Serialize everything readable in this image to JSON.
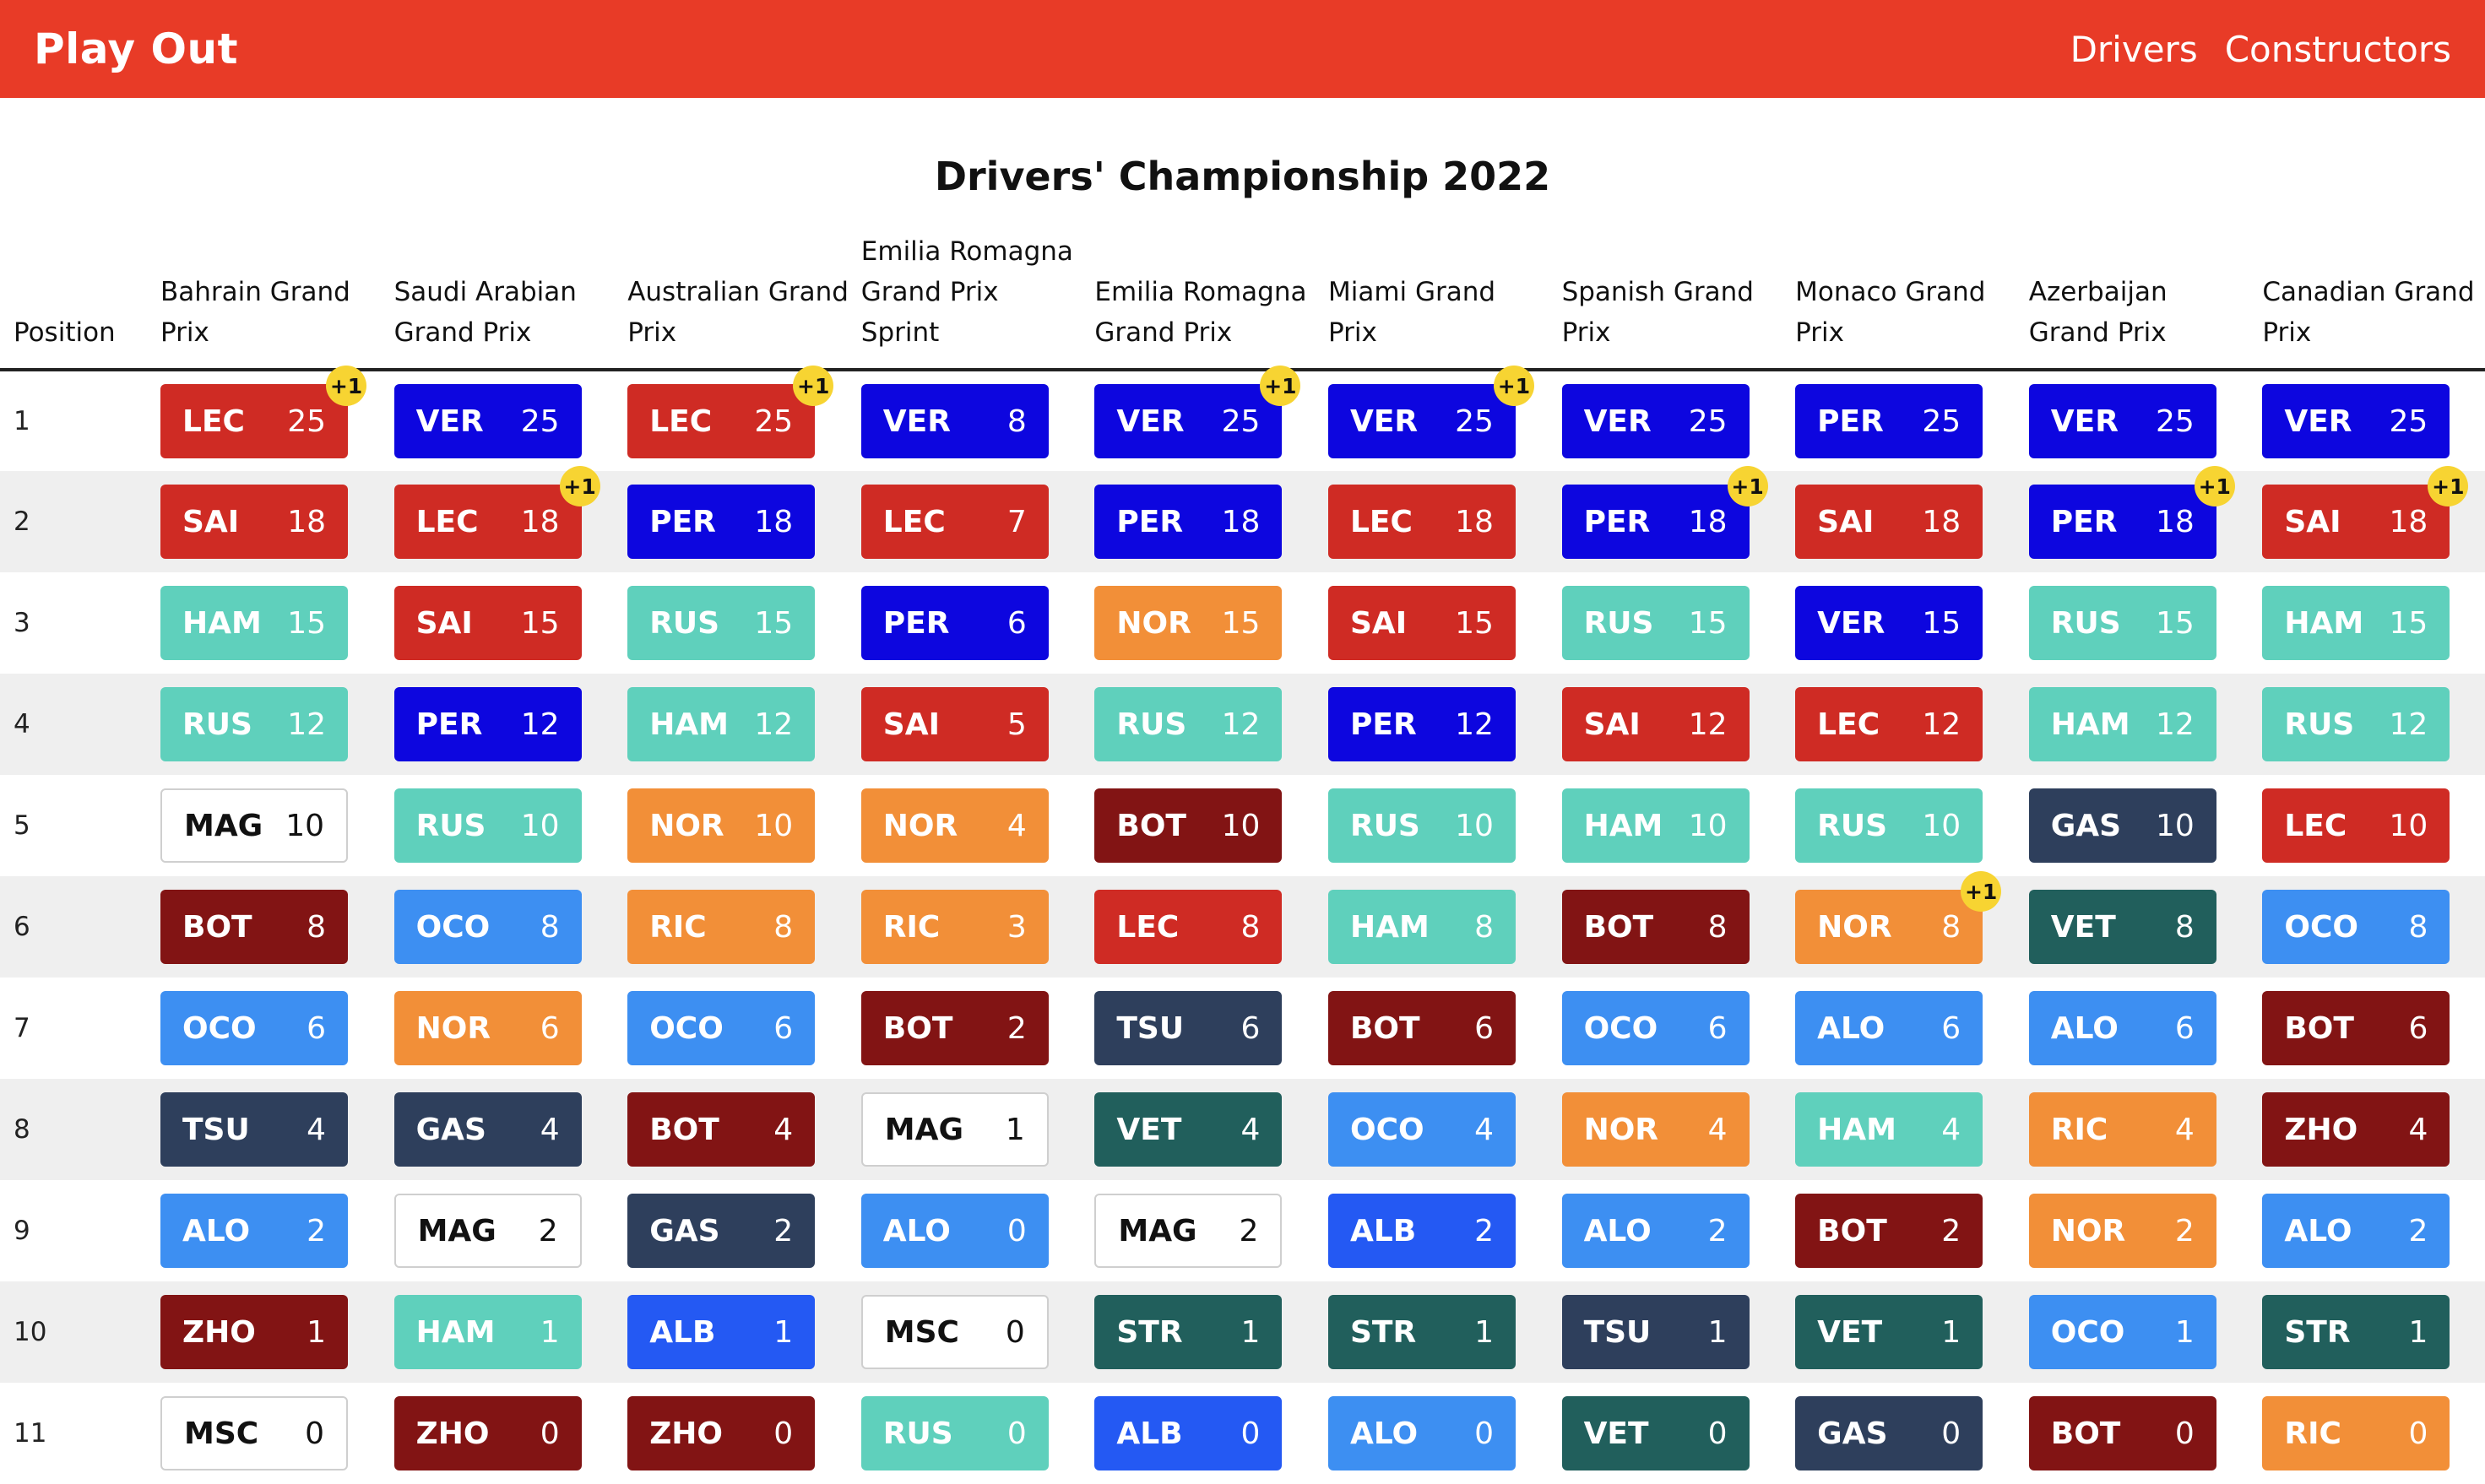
{
  "nav": {
    "brand": "Play Out",
    "links": [
      "Drivers",
      "Constructors"
    ]
  },
  "page_title": "Drivers' Championship 2022",
  "table": {
    "position_header": "Position",
    "races": [
      "Bahrain Grand Prix",
      "Saudi Arabian Grand Prix",
      "Australian Grand Prix",
      "Emilia Romagna Grand Prix Sprint",
      "Emilia Romagna Grand Prix",
      "Miami Grand Prix",
      "Spanish Grand Prix",
      "Monaco Grand Prix",
      "Azerbaijan Grand Prix",
      "Canadian Grand Prix"
    ],
    "bonus_label": "+1",
    "team_colors": {
      "ferrari": "#cf2b24",
      "redbull": "#0d06df",
      "mercedes": "#5fd0bc",
      "haas": "#ffffff",
      "alfa": "#821414",
      "alpine": "#3d8ff2",
      "alphatauri": "#2e3f5c",
      "mclaren": "#f28f38",
      "astonmartin": "#215f5c",
      "williams": "#2459f3"
    },
    "drivers": {
      "LEC": "ferrari",
      "SAI": "ferrari",
      "VER": "redbull",
      "PER": "redbull",
      "HAM": "mercedes",
      "RUS": "mercedes",
      "MAG": "haas",
      "MSC": "haas",
      "BOT": "alfa",
      "ZHO": "alfa",
      "OCO": "alpine",
      "ALO": "alpine",
      "TSU": "alphatauri",
      "GAS": "alphatauri",
      "NOR": "mclaren",
      "RIC": "mclaren",
      "VET": "astonmartin",
      "STR": "astonmartin",
      "ALB": "williams"
    },
    "rows": [
      {
        "position": "1",
        "cells": [
          {
            "d": "LEC",
            "p": "25",
            "b": true
          },
          {
            "d": "VER",
            "p": "25"
          },
          {
            "d": "LEC",
            "p": "25",
            "b": true
          },
          {
            "d": "VER",
            "p": "8"
          },
          {
            "d": "VER",
            "p": "25",
            "b": true
          },
          {
            "d": "VER",
            "p": "25",
            "b": true
          },
          {
            "d": "VER",
            "p": "25"
          },
          {
            "d": "PER",
            "p": "25"
          },
          {
            "d": "VER",
            "p": "25"
          },
          {
            "d": "VER",
            "p": "25"
          }
        ]
      },
      {
        "position": "2",
        "cells": [
          {
            "d": "SAI",
            "p": "18"
          },
          {
            "d": "LEC",
            "p": "18",
            "b": true
          },
          {
            "d": "PER",
            "p": "18"
          },
          {
            "d": "LEC",
            "p": "7"
          },
          {
            "d": "PER",
            "p": "18"
          },
          {
            "d": "LEC",
            "p": "18"
          },
          {
            "d": "PER",
            "p": "18",
            "b": true
          },
          {
            "d": "SAI",
            "p": "18"
          },
          {
            "d": "PER",
            "p": "18",
            "b": true
          },
          {
            "d": "SAI",
            "p": "18",
            "b": true
          }
        ]
      },
      {
        "position": "3",
        "cells": [
          {
            "d": "HAM",
            "p": "15"
          },
          {
            "d": "SAI",
            "p": "15"
          },
          {
            "d": "RUS",
            "p": "15"
          },
          {
            "d": "PER",
            "p": "6"
          },
          {
            "d": "NOR",
            "p": "15"
          },
          {
            "d": "SAI",
            "p": "15"
          },
          {
            "d": "RUS",
            "p": "15"
          },
          {
            "d": "VER",
            "p": "15"
          },
          {
            "d": "RUS",
            "p": "15"
          },
          {
            "d": "HAM",
            "p": "15"
          }
        ]
      },
      {
        "position": "4",
        "cells": [
          {
            "d": "RUS",
            "p": "12"
          },
          {
            "d": "PER",
            "p": "12"
          },
          {
            "d": "HAM",
            "p": "12"
          },
          {
            "d": "SAI",
            "p": "5"
          },
          {
            "d": "RUS",
            "p": "12"
          },
          {
            "d": "PER",
            "p": "12"
          },
          {
            "d": "SAI",
            "p": "12"
          },
          {
            "d": "LEC",
            "p": "12"
          },
          {
            "d": "HAM",
            "p": "12"
          },
          {
            "d": "RUS",
            "p": "12"
          }
        ]
      },
      {
        "position": "5",
        "cells": [
          {
            "d": "MAG",
            "p": "10"
          },
          {
            "d": "RUS",
            "p": "10"
          },
          {
            "d": "NOR",
            "p": "10"
          },
          {
            "d": "NOR",
            "p": "4"
          },
          {
            "d": "BOT",
            "p": "10"
          },
          {
            "d": "RUS",
            "p": "10"
          },
          {
            "d": "HAM",
            "p": "10"
          },
          {
            "d": "RUS",
            "p": "10"
          },
          {
            "d": "GAS",
            "p": "10"
          },
          {
            "d": "LEC",
            "p": "10"
          }
        ]
      },
      {
        "position": "6",
        "cells": [
          {
            "d": "BOT",
            "p": "8"
          },
          {
            "d": "OCO",
            "p": "8"
          },
          {
            "d": "RIC",
            "p": "8"
          },
          {
            "d": "RIC",
            "p": "3"
          },
          {
            "d": "LEC",
            "p": "8"
          },
          {
            "d": "HAM",
            "p": "8"
          },
          {
            "d": "BOT",
            "p": "8"
          },
          {
            "d": "NOR",
            "p": "8",
            "b": true
          },
          {
            "d": "VET",
            "p": "8"
          },
          {
            "d": "OCO",
            "p": "8"
          }
        ]
      },
      {
        "position": "7",
        "cells": [
          {
            "d": "OCO",
            "p": "6"
          },
          {
            "d": "NOR",
            "p": "6"
          },
          {
            "d": "OCO",
            "p": "6"
          },
          {
            "d": "BOT",
            "p": "2"
          },
          {
            "d": "TSU",
            "p": "6"
          },
          {
            "d": "BOT",
            "p": "6"
          },
          {
            "d": "OCO",
            "p": "6"
          },
          {
            "d": "ALO",
            "p": "6"
          },
          {
            "d": "ALO",
            "p": "6"
          },
          {
            "d": "BOT",
            "p": "6"
          }
        ]
      },
      {
        "position": "8",
        "cells": [
          {
            "d": "TSU",
            "p": "4"
          },
          {
            "d": "GAS",
            "p": "4"
          },
          {
            "d": "BOT",
            "p": "4"
          },
          {
            "d": "MAG",
            "p": "1"
          },
          {
            "d": "VET",
            "p": "4"
          },
          {
            "d": "OCO",
            "p": "4"
          },
          {
            "d": "NOR",
            "p": "4"
          },
          {
            "d": "HAM",
            "p": "4"
          },
          {
            "d": "RIC",
            "p": "4"
          },
          {
            "d": "ZHO",
            "p": "4"
          }
        ]
      },
      {
        "position": "9",
        "cells": [
          {
            "d": "ALO",
            "p": "2"
          },
          {
            "d": "MAG",
            "p": "2"
          },
          {
            "d": "GAS",
            "p": "2"
          },
          {
            "d": "ALO",
            "p": "0"
          },
          {
            "d": "MAG",
            "p": "2"
          },
          {
            "d": "ALB",
            "p": "2"
          },
          {
            "d": "ALO",
            "p": "2"
          },
          {
            "d": "BOT",
            "p": "2"
          },
          {
            "d": "NOR",
            "p": "2"
          },
          {
            "d": "ALO",
            "p": "2"
          }
        ]
      },
      {
        "position": "10",
        "cells": [
          {
            "d": "ZHO",
            "p": "1"
          },
          {
            "d": "HAM",
            "p": "1"
          },
          {
            "d": "ALB",
            "p": "1"
          },
          {
            "d": "MSC",
            "p": "0"
          },
          {
            "d": "STR",
            "p": "1"
          },
          {
            "d": "STR",
            "p": "1"
          },
          {
            "d": "TSU",
            "p": "1"
          },
          {
            "d": "VET",
            "p": "1"
          },
          {
            "d": "OCO",
            "p": "1"
          },
          {
            "d": "STR",
            "p": "1"
          }
        ]
      },
      {
        "position": "11",
        "cells": [
          {
            "d": "MSC",
            "p": "0"
          },
          {
            "d": "ZHO",
            "p": "0"
          },
          {
            "d": "ZHO",
            "p": "0"
          },
          {
            "d": "RUS",
            "p": "0"
          },
          {
            "d": "ALB",
            "p": "0"
          },
          {
            "d": "ALO",
            "p": "0"
          },
          {
            "d": "VET",
            "p": "0"
          },
          {
            "d": "GAS",
            "p": "0"
          },
          {
            "d": "BOT",
            "p": "0"
          },
          {
            "d": "RIC",
            "p": "0"
          }
        ]
      }
    ]
  }
}
